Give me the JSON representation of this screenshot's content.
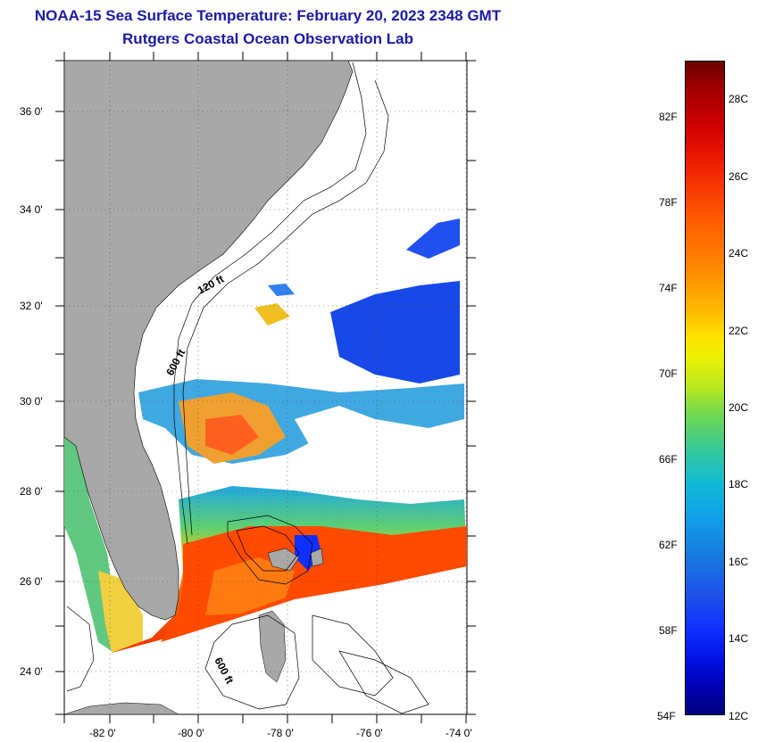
{
  "title_line1": "NOAA-15 Sea Surface Temperature:  February 20, 2023 2348 GMT",
  "title_line2": "Rutgers Coastal Ocean Observation Lab",
  "lat_labels": [
    "36 0'",
    "34 0'",
    "32 0'",
    "30 0'",
    "28 0'",
    "26 0'",
    "24 0'"
  ],
  "lon_labels": [
    "-82 0'",
    "-80 0'",
    "-78 0'",
    "-76 0'",
    "-74 0'"
  ],
  "contour_labels": {
    "c120": "120 ft",
    "c600a": "600 ft",
    "c600b": "600 ft"
  },
  "colorbar": {
    "fahrenheit": [
      "82F",
      "78F",
      "74F",
      "70F",
      "66F",
      "62F",
      "58F",
      "54F"
    ],
    "celsius": [
      "28C",
      "26C",
      "24C",
      "22C",
      "20C",
      "18C",
      "16C",
      "14C",
      "12C"
    ]
  },
  "colors": {
    "title": "#1a1aa6",
    "land": "#a8a8a8",
    "warm": "#ff4000",
    "cool": "#1030ff"
  }
}
